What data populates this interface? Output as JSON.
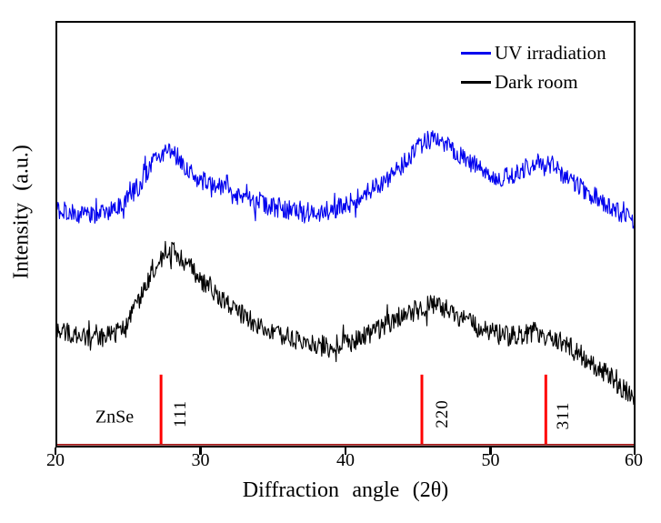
{
  "chart_data": {
    "type": "line",
    "title": "",
    "xlabel": "Diffraction angle (2θ)",
    "ylabel": "Intensity (a.u.)",
    "xlim": [
      20,
      60
    ],
    "x_ticks": [
      "20",
      "30",
      "40",
      "50",
      "60"
    ],
    "y_ticks": [],
    "y_units": "arbitrary units (percent of axis height)",
    "grid": false,
    "legend_position": "top-right",
    "axis_color": "#000000",
    "series": [
      {
        "id": "uv-irradiation",
        "name": "UV irradiation",
        "color": "#0000ee",
        "seed": 20231,
        "noise_amplitude": 2.3,
        "peaks_2theta": [
          27.3,
          46.0,
          53.5
        ],
        "envelope": [
          [
            20,
            55.9
          ],
          [
            22,
            54.6
          ],
          [
            24,
            56.3
          ],
          [
            25.5,
            60.8
          ],
          [
            26.5,
            66.5
          ],
          [
            27.3,
            69.5
          ],
          [
            28.3,
            68.2
          ],
          [
            29.5,
            63.8
          ],
          [
            31,
            61.4
          ],
          [
            33,
            58.2
          ],
          [
            35,
            56.3
          ],
          [
            37.5,
            55.2
          ],
          [
            39.5,
            56.3
          ],
          [
            41.5,
            59.7
          ],
          [
            43.5,
            64.8
          ],
          [
            45,
            70.4
          ],
          [
            46,
            72.5
          ],
          [
            47,
            71.4
          ],
          [
            48.5,
            67.4
          ],
          [
            50,
            64.0
          ],
          [
            50.8,
            63.1
          ],
          [
            52,
            64.8
          ],
          [
            53.5,
            67.2
          ],
          [
            54.5,
            66.1
          ],
          [
            55.5,
            63.1
          ],
          [
            57,
            59.5
          ],
          [
            58.5,
            56.3
          ],
          [
            60,
            53.3
          ]
        ]
      },
      {
        "id": "dark-room",
        "name": "Dark room",
        "color": "#000000",
        "seed": 7741,
        "noise_amplitude": 2.5,
        "peaks_2theta": [
          27.6,
          45.8,
          53.3
        ],
        "envelope": [
          [
            20,
            27.7
          ],
          [
            21.5,
            25.6
          ],
          [
            23,
            25.2
          ],
          [
            24.5,
            28.1
          ],
          [
            26,
            36.7
          ],
          [
            27,
            43.5
          ],
          [
            27.6,
            46.1
          ],
          [
            28.6,
            44.1
          ],
          [
            30,
            38.8
          ],
          [
            32,
            33.3
          ],
          [
            34,
            28.6
          ],
          [
            36,
            25.6
          ],
          [
            38,
            23.7
          ],
          [
            40,
            24.3
          ],
          [
            42,
            27.1
          ],
          [
            44,
            30.7
          ],
          [
            45.8,
            33.0
          ],
          [
            47,
            32.0
          ],
          [
            48.5,
            29.0
          ],
          [
            50,
            26.9
          ],
          [
            51.5,
            26.0
          ],
          [
            53.3,
            26.9
          ],
          [
            54.5,
            25.6
          ],
          [
            56,
            22.2
          ],
          [
            57.5,
            18.6
          ],
          [
            59,
            14.3
          ],
          [
            60,
            11.7
          ]
        ]
      }
    ],
    "reference": {
      "phase": "ZnSe",
      "color": "#ff0000",
      "baseline_color": "#a01010",
      "line_top_u": 16.8,
      "peaks": [
        {
          "two_theta": 27.2,
          "hkl": "111"
        },
        {
          "two_theta": 45.3,
          "hkl": "220"
        },
        {
          "two_theta": 53.9,
          "hkl": "311"
        }
      ]
    }
  }
}
